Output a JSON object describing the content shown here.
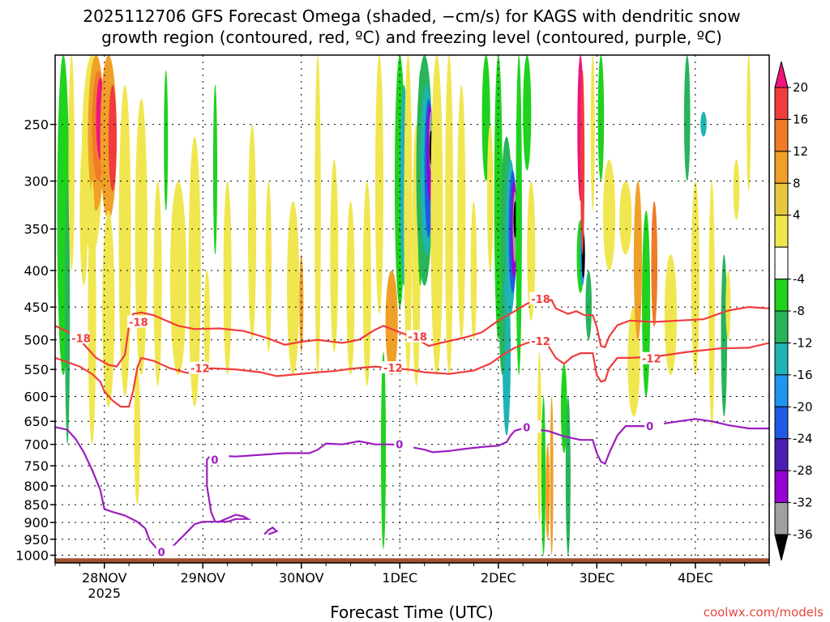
{
  "chart_data": {
    "type": "heatmap",
    "title_line1": "2025112706 GFS Forecast Omega (shaded, −cm/s) for KAGS with dendritic snow",
    "title_line2": "growth region (contoured, red, ºC) and freezing level (contoured, purple, ºC)",
    "xlabel": "Forecast Time (UTC)",
    "xticks": [
      {
        "t": 18,
        "label": "28NOV",
        "sub": "2025"
      },
      {
        "t": 42,
        "label": "29NOV",
        "sub": ""
      },
      {
        "t": 66,
        "label": "30NOV",
        "sub": ""
      },
      {
        "t": 90,
        "label": "1DEC",
        "sub": ""
      },
      {
        "t": 114,
        "label": "2DEC",
        "sub": ""
      },
      {
        "t": 138,
        "label": "3DEC",
        "sub": ""
      },
      {
        "t": 162,
        "label": "4DEC",
        "sub": ""
      }
    ],
    "xlim": [
      6,
      180
    ],
    "yticks": [
      250,
      300,
      350,
      400,
      450,
      500,
      550,
      600,
      650,
      700,
      750,
      800,
      850,
      900,
      950,
      1000
    ],
    "ylim": [
      1025,
      200
    ],
    "grid": true,
    "colorbar": {
      "labels": [
        20,
        16,
        12,
        8,
        4,
        -4,
        -8,
        -12,
        -16,
        -20,
        -24,
        -28,
        -32,
        -36
      ],
      "colors": [
        "#f0147c",
        "#f03c3c",
        "#f07a28",
        "#f0a028",
        "#e6c83c",
        "#f0e650",
        "#ffffff",
        "#1ed21e",
        "#28b45a",
        "#1eb4b4",
        "#1e96f0",
        "#1e5ae6",
        "#4b1eb4",
        "#9600d2",
        "#a0a0a0",
        "#000000"
      ]
    },
    "contours": [
      {
        "level": -18,
        "color": "#f03c3c",
        "name": "-18",
        "points": [
          [
            6,
            478
          ],
          [
            9,
            487
          ],
          [
            12,
            500
          ],
          [
            16,
            530
          ],
          [
            19,
            542
          ],
          [
            21,
            545
          ],
          [
            23,
            525
          ],
          [
            24,
            478
          ],
          [
            25,
            460
          ],
          [
            27,
            458
          ],
          [
            30,
            462
          ],
          [
            33,
            470
          ],
          [
            36,
            478
          ],
          [
            40,
            483
          ],
          [
            46,
            482
          ],
          [
            52,
            486
          ],
          [
            58,
            498
          ],
          [
            62,
            508
          ],
          [
            66,
            503
          ],
          [
            70,
            500
          ],
          [
            76,
            505
          ],
          [
            80,
            500
          ],
          [
            84,
            484
          ],
          [
            86,
            478
          ],
          [
            90,
            488
          ],
          [
            94,
            498
          ],
          [
            97,
            510
          ],
          [
            100,
            505
          ],
          [
            106,
            496
          ],
          [
            110,
            488
          ],
          [
            114,
            470
          ],
          [
            118,
            456
          ],
          [
            121,
            445
          ],
          [
            124,
            440
          ],
          [
            127,
            440
          ],
          [
            128,
            452
          ],
          [
            131,
            460
          ],
          [
            133,
            456
          ],
          [
            135,
            462
          ],
          [
            137,
            462
          ],
          [
            138,
            480
          ],
          [
            139,
            510
          ],
          [
            140,
            512
          ],
          [
            141,
            495
          ],
          [
            143,
            477
          ],
          [
            146,
            470
          ],
          [
            152,
            472
          ],
          [
            158,
            470
          ],
          [
            164,
            468
          ],
          [
            170,
            455
          ],
          [
            175,
            450
          ],
          [
            180,
            452
          ]
        ],
        "labels": [
          [
            24,
            472
          ],
          [
            10,
            497
          ],
          [
            92,
            495
          ],
          [
            122,
            438
          ]
        ]
      },
      {
        "level": -12,
        "color": "#f03c3c",
        "name": "-12",
        "points": [
          [
            6,
            530
          ],
          [
            9,
            537
          ],
          [
            12,
            545
          ],
          [
            15,
            558
          ],
          [
            17,
            572
          ],
          [
            18,
            590
          ],
          [
            20,
            608
          ],
          [
            22,
            620
          ],
          [
            24,
            620
          ],
          [
            25,
            590
          ],
          [
            26,
            548
          ],
          [
            27,
            530
          ],
          [
            30,
            535
          ],
          [
            34,
            548
          ],
          [
            38,
            556
          ],
          [
            40,
            556
          ],
          [
            44,
            548
          ],
          [
            50,
            550
          ],
          [
            56,
            555
          ],
          [
            60,
            562
          ],
          [
            66,
            558
          ],
          [
            70,
            555
          ],
          [
            74,
            553
          ],
          [
            78,
            549
          ],
          [
            84,
            545
          ],
          [
            88,
            548
          ],
          [
            92,
            550
          ],
          [
            96,
            555
          ],
          [
            102,
            558
          ],
          [
            108,
            552
          ],
          [
            112,
            540
          ],
          [
            115,
            525
          ],
          [
            118,
            513
          ],
          [
            121,
            505
          ],
          [
            124,
            503
          ],
          [
            126,
            508
          ],
          [
            128,
            530
          ],
          [
            130,
            540
          ],
          [
            132,
            528
          ],
          [
            134,
            522
          ],
          [
            137,
            522
          ],
          [
            138,
            560
          ],
          [
            139,
            572
          ],
          [
            140,
            570
          ],
          [
            141,
            548
          ],
          [
            143,
            530
          ],
          [
            146,
            530
          ],
          [
            152,
            528
          ],
          [
            160,
            520
          ],
          [
            168,
            514
          ],
          [
            175,
            513
          ],
          [
            180,
            505
          ]
        ],
        "labels": [
          [
            39,
            548
          ],
          [
            86,
            547
          ],
          [
            122,
            502
          ],
          [
            149,
            531
          ]
        ]
      },
      {
        "level": 0,
        "color": "#9b1ebf",
        "name": "0",
        "points": [
          [
            6,
            662
          ],
          [
            9,
            668
          ],
          [
            11,
            688
          ],
          [
            13,
            718
          ],
          [
            15,
            760
          ],
          [
            17,
            810
          ],
          [
            18,
            862
          ],
          [
            20,
            870
          ],
          [
            23,
            880
          ],
          [
            26,
            898
          ],
          [
            28,
            918
          ],
          [
            29,
            952
          ],
          [
            31,
            983
          ],
          [
            33,
            990
          ],
          [
            35,
            968
          ],
          [
            38,
            930
          ],
          [
            40,
            905
          ],
          [
            42,
            898
          ],
          [
            46,
            898
          ],
          [
            48,
            888
          ],
          [
            50,
            878
          ],
          [
            52,
            883
          ],
          [
            53,
            890
          ],
          [
            50,
            890
          ],
          [
            48,
            898
          ],
          [
            45,
            898
          ],
          [
            44,
            870
          ],
          [
            43,
            800
          ],
          [
            43,
            735
          ],
          [
            44,
            725
          ],
          [
            50,
            728
          ],
          [
            56,
            724
          ],
          [
            62,
            720
          ],
          [
            68,
            720
          ],
          [
            70,
            712
          ],
          [
            72,
            698
          ],
          [
            76,
            700
          ],
          [
            80,
            693
          ],
          [
            84,
            700
          ],
          [
            88,
            700
          ],
          [
            92,
            705
          ],
          [
            96,
            712
          ],
          [
            98,
            718
          ],
          [
            102,
            715
          ],
          [
            106,
            710
          ],
          [
            110,
            706
          ],
          [
            114,
            703
          ],
          [
            116,
            695
          ],
          [
            117,
            680
          ],
          [
            118,
            670
          ],
          [
            120,
            665
          ],
          [
            123,
            668
          ],
          [
            126,
            670
          ],
          [
            130,
            682
          ],
          [
            134,
            690
          ],
          [
            137,
            690
          ],
          [
            138,
            720
          ],
          [
            139,
            740
          ],
          [
            140,
            745
          ],
          [
            141,
            720
          ],
          [
            143,
            680
          ],
          [
            145,
            660
          ],
          [
            150,
            660
          ],
          [
            154,
            655
          ],
          [
            158,
            650
          ],
          [
            162,
            645
          ],
          [
            166,
            650
          ],
          [
            170,
            658
          ],
          [
            175,
            665
          ],
          [
            180,
            665
          ]
        ],
        "labels": [
          [
            31,
            990
          ],
          [
            44,
            735
          ],
          [
            89,
            700
          ],
          [
            120,
            662
          ],
          [
            150,
            660
          ]
        ]
      },
      {
        "level": 0,
        "color": "#9b1ebf",
        "name": "0-blob",
        "points": [
          [
            57,
            935
          ],
          [
            58,
            922
          ],
          [
            59,
            915
          ],
          [
            60,
            926
          ],
          [
            58,
            935
          ]
        ],
        "labels": []
      }
    ],
    "ground_level_hpa": 1010
  },
  "watermark": "coolwx.com/models"
}
